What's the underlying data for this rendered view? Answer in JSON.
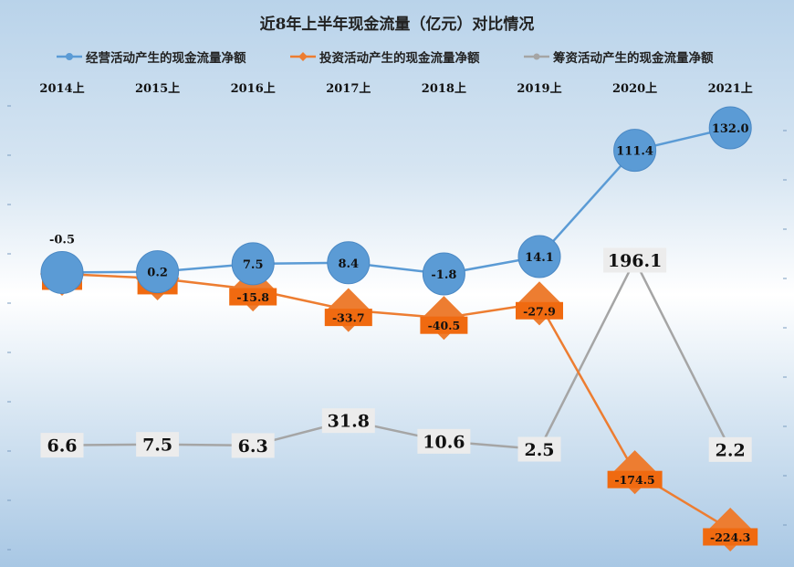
{
  "chart_data": {
    "type": "line",
    "title": "近8年上半年现金流量（亿元）对比情况",
    "categories": [
      "2014上",
      "2015上",
      "2016上",
      "2017上",
      "2018上",
      "2019上",
      "2020上",
      "2021上"
    ],
    "series": [
      {
        "name": "经营活动产生的现金流量净额",
        "values": [
          -0.5,
          0.2,
          7.5,
          8.4,
          -1.8,
          14.1,
          111.4,
          132.0
        ],
        "labels": [
          "-0.5",
          "0.2",
          "7.5",
          "8.4",
          "-1.8",
          "14.1",
          "111.4",
          "132.0"
        ],
        "color": "#5b9bd5"
      },
      {
        "name": "投资活动产生的现金流量净额",
        "values": [
          -2.3,
          -6.2,
          -15.8,
          -33.7,
          -40.5,
          -27.9,
          -174.5,
          -224.3
        ],
        "labels": [
          "-2.3",
          "-6.2",
          "-15.8",
          "-33.7",
          "-40.5",
          "-27.9",
          "-174.5",
          "-224.3"
        ],
        "color": "#ed7d31"
      },
      {
        "name": "筹资活动产生的现金流量净额",
        "values": [
          6.6,
          7.5,
          6.3,
          31.8,
          10.6,
          2.5,
          196.1,
          2.2
        ],
        "labels": [
          "6.6",
          "7.5",
          "6.3",
          "31.8",
          "10.6",
          "2.5",
          "196.1",
          "2.2"
        ],
        "color": "#a5a5a5"
      }
    ],
    "legend_position": "top",
    "category_axis_position": "top",
    "grid": false
  }
}
